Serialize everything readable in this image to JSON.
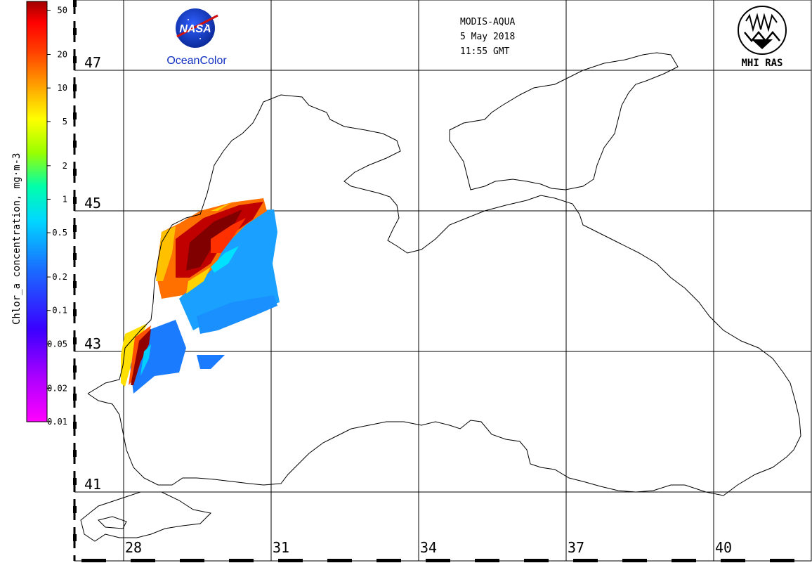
{
  "header": {
    "sensor": "MODIS-AQUA",
    "date": "5 May 2018",
    "time": "11:55 GMT"
  },
  "logos": {
    "nasa_text": "NASA",
    "oceancolor_text": "OceanColor",
    "mhi_text": "MHI RAS"
  },
  "colorbar": {
    "label": "Chlor_a concentration, mg·m-3",
    "ticks": [
      "50",
      "20",
      "10",
      "5",
      "2",
      "1",
      "0.5",
      "0.2",
      "0.1",
      "0.05",
      "0.02",
      "0.01"
    ],
    "scale": "log",
    "colors": [
      "#ff00ff",
      "#8a00ff",
      "#0000ff",
      "#1a8cff",
      "#00ffff",
      "#00ff88",
      "#b0ff00",
      "#ffff00",
      "#ffb000",
      "#ff5a00",
      "#ff0000",
      "#a00000"
    ]
  },
  "grid": {
    "lat_labels": [
      "47",
      "45",
      "43",
      "41"
    ],
    "lon_labels": [
      "28",
      "31",
      "34",
      "37",
      "40"
    ]
  },
  "colors": {
    "coastline": "#000000",
    "grid": "#000000",
    "background": "#ffffff"
  }
}
